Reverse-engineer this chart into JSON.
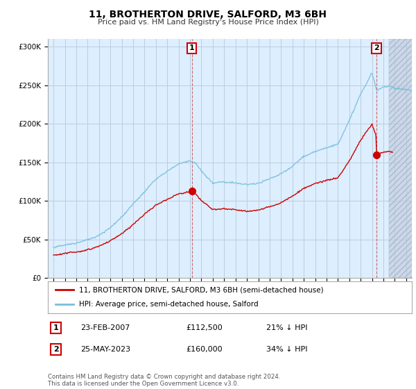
{
  "title": "11, BROTHERTON DRIVE, SALFORD, M3 6BH",
  "subtitle": "Price paid vs. HM Land Registry's House Price Index (HPI)",
  "ylabel_ticks": [
    "£0",
    "£50K",
    "£100K",
    "£150K",
    "£200K",
    "£250K",
    "£300K"
  ],
  "ylim": [
    0,
    310000
  ],
  "xlim_start": 1994.5,
  "xlim_end": 2026.5,
  "hpi_color": "#7abfdc",
  "price_color": "#cc0000",
  "marker1_date": 2007.15,
  "marker1_price": 112500,
  "marker2_date": 2023.4,
  "marker2_price": 160000,
  "legend_line1": "11, BROTHERTON DRIVE, SALFORD, M3 6BH (semi-detached house)",
  "legend_line2": "HPI: Average price, semi-detached house, Salford",
  "footnote": "Contains HM Land Registry data © Crown copyright and database right 2024.\nThis data is licensed under the Open Government Licence v3.0.",
  "background_color": "#ffffff",
  "chart_bg_color": "#ddeeff",
  "grid_color": "#bbccdd",
  "hatch_start": 2024.5
}
